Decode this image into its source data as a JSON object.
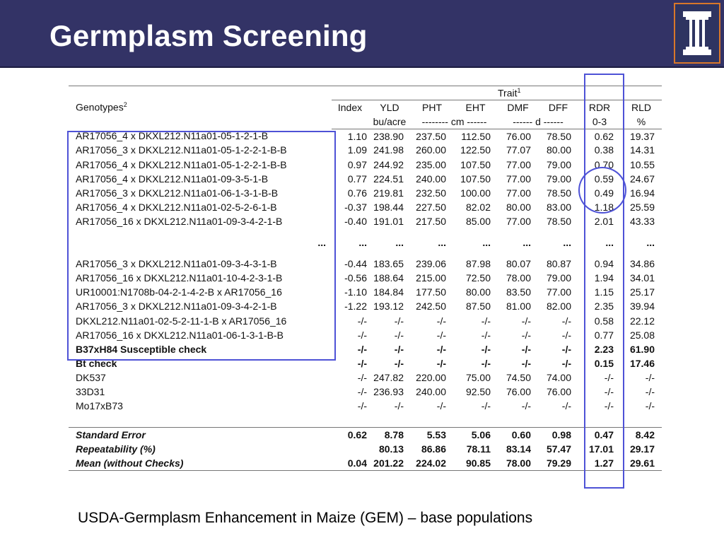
{
  "slide": {
    "title": "Germplasm Screening",
    "footer": "USDA-Germplasm Enhancement in Maize (GEM) – base populations"
  },
  "logo": {
    "icon": "column-icon",
    "accent": "#d8772a",
    "background": "#333366"
  },
  "table": {
    "group_header": "Trait",
    "group_footnote": "1",
    "genotypes_header": "Genotypes",
    "genotypes_footnote": "2",
    "columns": [
      "Index",
      "YLD",
      "PHT",
      "EHT",
      "DMF",
      "DFF",
      "RDR",
      "RLD"
    ],
    "units": [
      "",
      "bu/acre",
      "-------- cm ------",
      "",
      "------ d ------",
      "",
      "0-3",
      "%"
    ],
    "rows": [
      {
        "genotype": "AR17056_4 x DKXL212.N11a01-05-1-2-1-B",
        "values": [
          "1.10",
          "238.90",
          "237.50",
          "112.50",
          "76.00",
          "78.50",
          "0.62",
          "19.37"
        ]
      },
      {
        "genotype": "AR17056_3 x DKXL212.N11a01-05-1-2-2-1-B-B",
        "values": [
          "1.09",
          "241.98",
          "260.00",
          "122.50",
          "77.07",
          "80.00",
          "0.38",
          "14.31"
        ]
      },
      {
        "genotype": "AR17056_4 x DKXL212.N11a01-05-1-2-2-1-B-B",
        "values": [
          "0.97",
          "244.92",
          "235.00",
          "107.50",
          "77.00",
          "79.00",
          "0.70",
          "10.55"
        ]
      },
      {
        "genotype": "AR17056_4 x DKXL212.N11a01-09-3-5-1-B",
        "values": [
          "0.77",
          "224.51",
          "240.00",
          "107.50",
          "77.00",
          "79.00",
          "0.59",
          "24.67"
        ]
      },
      {
        "genotype": "AR17056_3 x DKXL212.N11a01-06-1-3-1-B-B",
        "values": [
          "0.76",
          "219.81",
          "232.50",
          "100.00",
          "77.00",
          "78.50",
          "0.49",
          "16.94"
        ]
      },
      {
        "genotype": "AR17056_4 x DKXL212.N11a01-02-5-2-6-1-B",
        "values": [
          "-0.37",
          "198.44",
          "227.50",
          "82.02",
          "80.00",
          "83.00",
          "1.18",
          "25.59"
        ]
      },
      {
        "genotype": "AR17056_16 x DKXL212.N11a01-09-3-4-2-1-B",
        "values": [
          "-0.40",
          "191.01",
          "217.50",
          "85.00",
          "77.00",
          "78.50",
          "2.01",
          "43.33"
        ]
      }
    ],
    "ellipsis_row": [
      "...",
      "...",
      "...",
      "...",
      "...",
      "...",
      "...",
      "...",
      "..."
    ],
    "rows_lower": [
      {
        "genotype": "AR17056_3 x DKXL212.N11a01-09-3-4-3-1-B",
        "values": [
          "-0.44",
          "183.65",
          "239.06",
          "87.98",
          "80.07",
          "80.87",
          "0.94",
          "34.86"
        ]
      },
      {
        "genotype": "AR17056_16 x DKXL212.N11a01-10-4-2-3-1-B",
        "values": [
          "-0.56",
          "188.64",
          "215.00",
          "72.50",
          "78.00",
          "79.00",
          "1.94",
          "34.01"
        ]
      },
      {
        "genotype": "UR10001:N1708b-04-2-1-4-2-B x AR17056_16",
        "values": [
          "-1.10",
          "184.84",
          "177.50",
          "80.00",
          "83.50",
          "77.00",
          "1.15",
          "25.17"
        ]
      },
      {
        "genotype": "AR17056_3 x DKXL212.N11a01-09-3-4-2-1-B",
        "values": [
          "-1.22",
          "193.12",
          "242.50",
          "87.50",
          "81.00",
          "82.00",
          "2.35",
          "39.94"
        ]
      },
      {
        "genotype": "DKXL212.N11a01-02-5-2-11-1-B x AR17056_16",
        "values": [
          "-/-",
          "-/-",
          "-/-",
          "-/-",
          "-/-",
          "-/-",
          "0.58",
          "22.12"
        ]
      },
      {
        "genotype": "AR17056_16 x DKXL212.N11a01-06-1-3-1-B-B",
        "values": [
          "-/-",
          "-/-",
          "-/-",
          "-/-",
          "-/-",
          "-/-",
          "0.77",
          "25.08"
        ]
      }
    ],
    "checks": [
      {
        "genotype": "B37xH84 Susceptible check",
        "values": [
          "-/-",
          "-/-",
          "-/-",
          "-/-",
          "-/-",
          "-/-",
          "2.23",
          "61.90"
        ],
        "bold": true
      },
      {
        "genotype": "Bt check",
        "values": [
          "-/-",
          "-/-",
          "-/-",
          "-/-",
          "-/-",
          "-/-",
          "0.15",
          "17.46"
        ],
        "bold": true
      },
      {
        "genotype": "DK537",
        "values": [
          "-/-",
          "247.82",
          "220.00",
          "75.00",
          "74.50",
          "74.00",
          "-/-",
          "-/-"
        ],
        "bold": false
      },
      {
        "genotype": "33D31",
        "values": [
          "-/-",
          "236.93",
          "240.00",
          "92.50",
          "76.00",
          "76.00",
          "-/-",
          "-/-"
        ],
        "bold": false
      },
      {
        "genotype": "Mo17xB73",
        "values": [
          "-/-",
          "-/-",
          "-/-",
          "-/-",
          "-/-",
          "-/-",
          "-/-",
          "-/-"
        ],
        "bold": false
      }
    ],
    "stats": [
      {
        "label": "Standard Error",
        "values": [
          "0.62",
          "8.78",
          "5.53",
          "5.06",
          "0.60",
          "0.98",
          "0.47",
          "8.42"
        ]
      },
      {
        "label": "Repeatability (%)",
        "values": [
          "",
          "80.13",
          "86.86",
          "78.11",
          "83.14",
          "57.47",
          "17.01",
          "29.17"
        ]
      },
      {
        "label": "Mean (without Checks)",
        "values": [
          "0.04",
          "201.22",
          "224.02",
          "90.85",
          "78.00",
          "79.29",
          "1.27",
          "29.61"
        ]
      }
    ]
  },
  "highlight_color": "#4e52d6"
}
